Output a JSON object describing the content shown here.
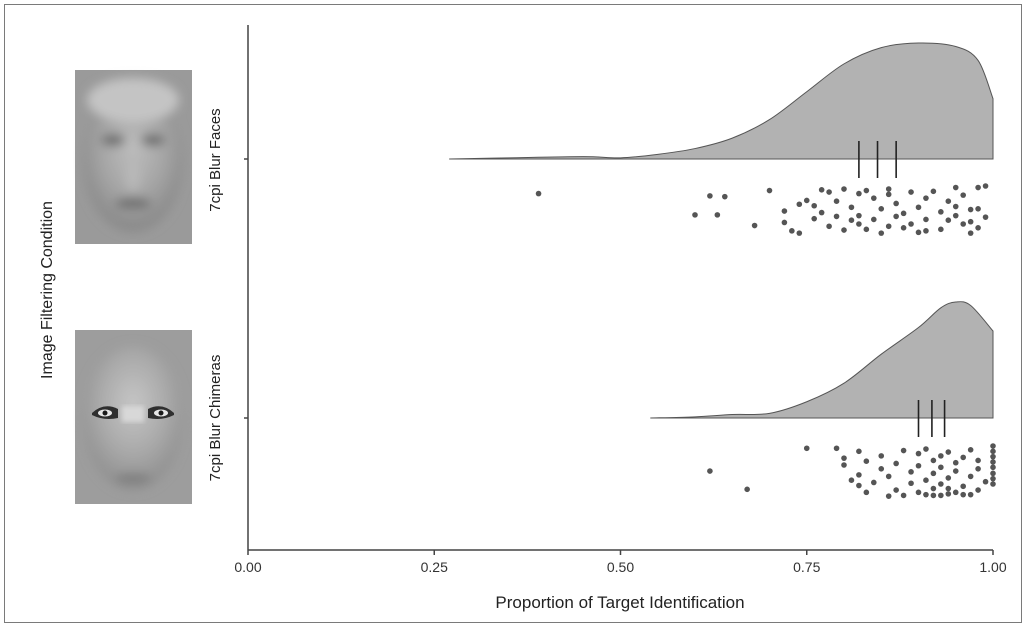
{
  "chart_data": {
    "type": "raincloud",
    "title": "",
    "xlabel": "Proportion of Target Identification",
    "ylabel": "Image Filtering Condition",
    "xlim": [
      0.0,
      1.0
    ],
    "xticks": [
      "0.00",
      "0.25",
      "0.50",
      "0.75",
      "1.00"
    ],
    "tick_values": [
      0.0,
      0.25,
      0.5,
      0.75,
      1.0
    ],
    "grid": false,
    "colors": {
      "density_fill": "#b2b2b2",
      "density_stroke": "#555555",
      "point": "#555555",
      "axis": "#444444"
    },
    "groups": [
      {
        "label": "7cpi Blur Faces",
        "density_x": [
          0.27,
          0.35,
          0.45,
          0.5,
          0.55,
          0.6,
          0.65,
          0.7,
          0.75,
          0.8,
          0.85,
          0.9,
          0.95,
          0.98,
          1.0
        ],
        "density_y": [
          0.0,
          0.01,
          0.02,
          0.01,
          0.04,
          0.09,
          0.18,
          0.34,
          0.58,
          0.82,
          0.96,
          1.0,
          0.97,
          0.85,
          0.52
        ],
        "quartiles": [
          0.82,
          0.845,
          0.87
        ],
        "points": [
          [
            0.39,
            0.1
          ],
          [
            0.62,
            0.13
          ],
          [
            0.64,
            0.14
          ],
          [
            0.7,
            0.06
          ],
          [
            0.6,
            0.38
          ],
          [
            0.63,
            0.38
          ],
          [
            0.68,
            0.52
          ],
          [
            0.72,
            0.48
          ],
          [
            0.72,
            0.33
          ],
          [
            0.73,
            0.59
          ],
          [
            0.74,
            0.62
          ],
          [
            0.74,
            0.24
          ],
          [
            0.75,
            0.19
          ],
          [
            0.76,
            0.43
          ],
          [
            0.77,
            0.05
          ],
          [
            0.77,
            0.35
          ],
          [
            0.78,
            0.08
          ],
          [
            0.78,
            0.53
          ],
          [
            0.79,
            0.2
          ],
          [
            0.8,
            0.58
          ],
          [
            0.8,
            0.04
          ],
          [
            0.81,
            0.28
          ],
          [
            0.81,
            0.45
          ],
          [
            0.82,
            0.1
          ],
          [
            0.82,
            0.39
          ],
          [
            0.83,
            0.57
          ],
          [
            0.83,
            0.06
          ],
          [
            0.84,
            0.16
          ],
          [
            0.84,
            0.44
          ],
          [
            0.85,
            0.3
          ],
          [
            0.86,
            0.53
          ],
          [
            0.86,
            0.11
          ],
          [
            0.86,
            0.04
          ],
          [
            0.87,
            0.23
          ],
          [
            0.87,
            0.4
          ],
          [
            0.88,
            0.55
          ],
          [
            0.89,
            0.08
          ],
          [
            0.89,
            0.5
          ],
          [
            0.9,
            0.28
          ],
          [
            0.9,
            0.61
          ],
          [
            0.91,
            0.16
          ],
          [
            0.91,
            0.44
          ],
          [
            0.92,
            0.07
          ],
          [
            0.93,
            0.34
          ],
          [
            0.93,
            0.57
          ],
          [
            0.94,
            0.2
          ],
          [
            0.94,
            0.45
          ],
          [
            0.95,
            0.02
          ],
          [
            0.95,
            0.39
          ],
          [
            0.96,
            0.12
          ],
          [
            0.96,
            0.5
          ],
          [
            0.97,
            0.31
          ],
          [
            0.97,
            0.47
          ],
          [
            0.98,
            0.02
          ],
          [
            0.98,
            0.3
          ],
          [
            0.98,
            0.55
          ],
          [
            0.99,
            0.41
          ],
          [
            0.99,
            0.0
          ],
          [
            0.85,
            0.62
          ],
          [
            0.82,
            0.5
          ],
          [
            0.79,
            0.4
          ],
          [
            0.76,
            0.26
          ],
          [
            0.91,
            0.59
          ],
          [
            0.88,
            0.36
          ],
          [
            0.95,
            0.27
          ],
          [
            0.97,
            0.62
          ]
        ]
      },
      {
        "label": "7cpi Blur Chimeras",
        "density_x": [
          0.54,
          0.6,
          0.65,
          0.7,
          0.75,
          0.8,
          0.85,
          0.9,
          0.93,
          0.95,
          0.97,
          1.0
        ],
        "density_y": [
          0.0,
          0.01,
          0.03,
          0.04,
          0.14,
          0.3,
          0.55,
          0.78,
          0.95,
          1.0,
          0.97,
          0.75
        ],
        "quartiles": [
          0.9,
          0.918,
          0.935
        ],
        "points": [
          [
            0.62,
            0.33
          ],
          [
            0.67,
            0.57
          ],
          [
            0.75,
            0.03
          ],
          [
            0.79,
            0.03
          ],
          [
            0.8,
            0.16
          ],
          [
            0.8,
            0.25
          ],
          [
            0.81,
            0.45
          ],
          [
            0.82,
            0.38
          ],
          [
            0.82,
            0.52
          ],
          [
            0.82,
            0.07
          ],
          [
            0.83,
            0.2
          ],
          [
            0.83,
            0.61
          ],
          [
            0.84,
            0.48
          ],
          [
            0.85,
            0.13
          ],
          [
            0.85,
            0.3
          ],
          [
            0.86,
            0.66
          ],
          [
            0.86,
            0.4
          ],
          [
            0.87,
            0.23
          ],
          [
            0.87,
            0.58
          ],
          [
            0.88,
            0.06
          ],
          [
            0.88,
            0.65
          ],
          [
            0.89,
            0.34
          ],
          [
            0.89,
            0.49
          ],
          [
            0.9,
            0.1
          ],
          [
            0.9,
            0.26
          ],
          [
            0.9,
            0.61
          ],
          [
            0.91,
            0.45
          ],
          [
            0.91,
            0.04
          ],
          [
            0.92,
            0.19
          ],
          [
            0.92,
            0.36
          ],
          [
            0.92,
            0.56
          ],
          [
            0.92,
            0.65
          ],
          [
            0.93,
            0.28
          ],
          [
            0.93,
            0.13
          ],
          [
            0.93,
            0.5
          ],
          [
            0.94,
            0.42
          ],
          [
            0.94,
            0.63
          ],
          [
            0.94,
            0.08
          ],
          [
            0.95,
            0.22
          ],
          [
            0.95,
            0.33
          ],
          [
            0.96,
            0.53
          ],
          [
            0.96,
            0.64
          ],
          [
            0.96,
            0.15
          ],
          [
            0.97,
            0.4
          ],
          [
            0.97,
            0.05
          ],
          [
            0.98,
            0.3
          ],
          [
            0.98,
            0.58
          ],
          [
            0.98,
            0.19
          ],
          [
            1.0,
            0.0
          ],
          [
            1.0,
            0.07
          ],
          [
            1.0,
            0.14
          ],
          [
            1.0,
            0.21
          ],
          [
            1.0,
            0.28
          ],
          [
            1.0,
            0.36
          ],
          [
            1.0,
            0.43
          ],
          [
            1.0,
            0.5
          ],
          [
            0.97,
            0.64
          ],
          [
            0.95,
            0.61
          ],
          [
            0.91,
            0.64
          ],
          [
            0.99,
            0.47
          ],
          [
            0.93,
            0.65
          ],
          [
            0.94,
            0.56
          ]
        ]
      }
    ]
  },
  "images": [
    {
      "alt_name": "blur-face-image"
    },
    {
      "alt_name": "blur-chimera-image"
    }
  ]
}
